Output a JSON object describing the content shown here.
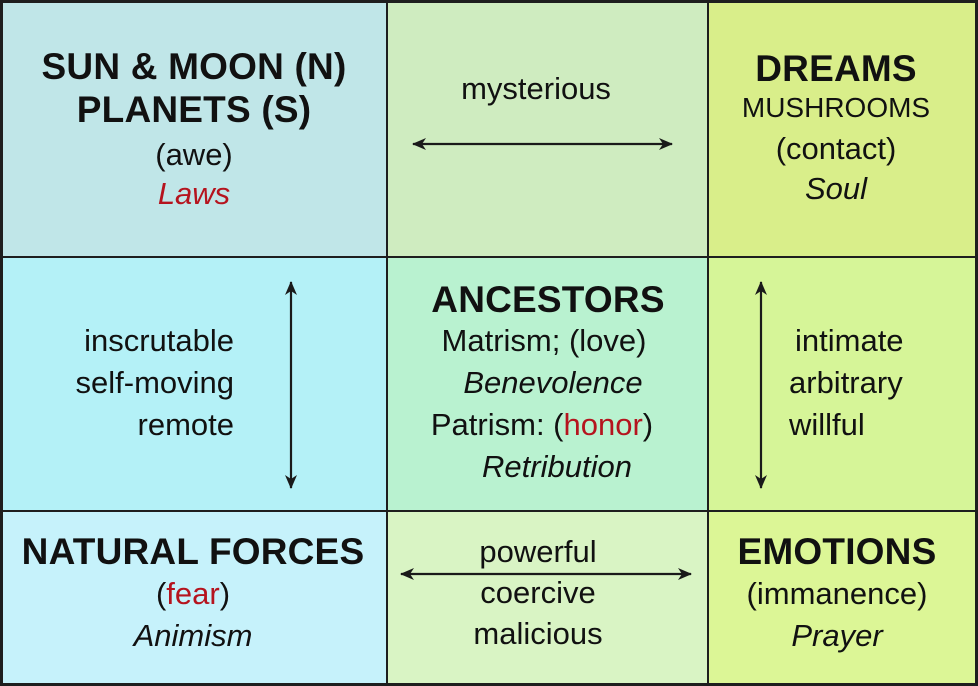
{
  "colors": {
    "top_left": "#c0e6e8",
    "top_mid": "#cfecc0",
    "top_right": "#d9ee8a",
    "mid_left": "#b4f1f7",
    "mid_mid": "#b9f2d0",
    "mid_right": "#d6f598",
    "bot_left": "#c6f2fb",
    "bot_mid": "#d9f4c4",
    "bot_right": "#dcf696",
    "accent_red": "#b5141e",
    "arrow": "#1a1a1a"
  },
  "top_left": {
    "title_line1": "SUN & MOON (N)",
    "title_line2": "PLANETS (S)",
    "emotion": "(awe)",
    "concept": "Laws"
  },
  "top_mid": {
    "label": "mysterious"
  },
  "top_right": {
    "title": "DREAMS",
    "subtitle": "MUSHROOMS",
    "emotion": "(contact)",
    "concept": "Soul"
  },
  "mid_left": {
    "line1": "inscrutable",
    "line2": "self-moving",
    "line3": "remote"
  },
  "mid_mid": {
    "title": "ANCESTORS",
    "matrism": "Matrism; (love)",
    "matrism_concept": "Benevolence",
    "patrism_prefix": "Patrism: (",
    "patrism_emotion": "honor",
    "patrism_suffix": ")",
    "patrism_concept": "Retribution"
  },
  "mid_right": {
    "line1": "intimate",
    "line2": "arbitrary",
    "line3": "willful"
  },
  "bot_left": {
    "title": "NATURAL FORCES",
    "emotion_open": "(",
    "emotion": "fear",
    "emotion_close": ")",
    "concept": "Animism"
  },
  "bot_mid": {
    "line1": "powerful",
    "line2": "coercive",
    "line3": "malicious"
  },
  "bot_right": {
    "title": "EMOTIONS",
    "emotion": "(immanence)",
    "concept": "Prayer"
  }
}
